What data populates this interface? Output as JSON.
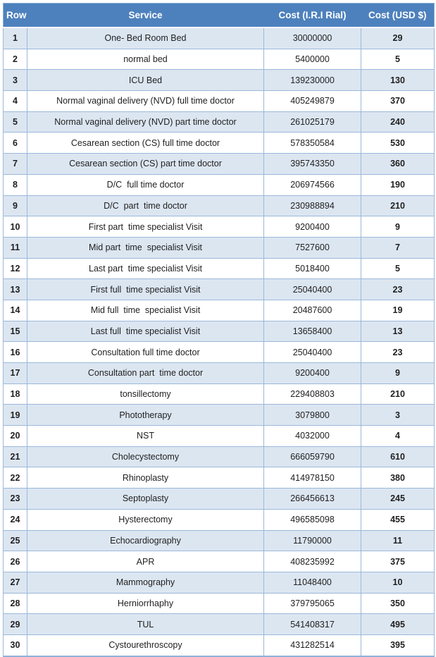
{
  "colors": {
    "header_bg": "#4d81bd",
    "header_text": "#ffffff",
    "band_row_bg": "#dce6f1",
    "plain_row_bg": "#ffffff",
    "grid_border": "#9bb8da",
    "body_text": "#1f1f1f"
  },
  "table": {
    "columns": [
      {
        "label": "Row"
      },
      {
        "label": "Service"
      },
      {
        "label": "Cost (I.R.I Rial)"
      },
      {
        "label": "Cost (USD $)"
      }
    ],
    "rows": [
      {
        "row": "1",
        "service": "One- Bed Room Bed",
        "rial": "30000000",
        "usd": "29"
      },
      {
        "row": "2",
        "service": "normal bed",
        "rial": "5400000",
        "usd": "5"
      },
      {
        "row": "3",
        "service": "ICU Bed",
        "rial": "139230000",
        "usd": "130"
      },
      {
        "row": "4",
        "service": "Normal vaginal delivery (NVD) full time doctor",
        "rial": "405249879",
        "usd": "370"
      },
      {
        "row": "5",
        "service": "Normal vaginal delivery (NVD) part time doctor",
        "rial": "261025179",
        "usd": "240"
      },
      {
        "row": "6",
        "service": "Cesarean section (CS) full time doctor",
        "rial": "578350584",
        "usd": "530"
      },
      {
        "row": "7",
        "service": "Cesarean section (CS) part time doctor",
        "rial": "395743350",
        "usd": "360"
      },
      {
        "row": "8",
        "service": "D/C  full time doctor",
        "rial": "206974566",
        "usd": "190"
      },
      {
        "row": "9",
        "service": "D/C  part  time doctor",
        "rial": "230988894",
        "usd": "210"
      },
      {
        "row": "10",
        "service": "First part  time specialist Visit",
        "rial": "9200400",
        "usd": "9"
      },
      {
        "row": "11",
        "service": "Mid part  time  specialist Visit",
        "rial": "7527600",
        "usd": "7"
      },
      {
        "row": "12",
        "service": "Last part  time specialist Visit",
        "rial": "5018400",
        "usd": "5"
      },
      {
        "row": "13",
        "service": "First full  time specialist Visit",
        "rial": "25040400",
        "usd": "23"
      },
      {
        "row": "14",
        "service": "Mid full  time  specialist Visit",
        "rial": "20487600",
        "usd": "19"
      },
      {
        "row": "15",
        "service": "Last full  time specialist Visit",
        "rial": "13658400",
        "usd": "13"
      },
      {
        "row": "16",
        "service": "Consultation full time doctor",
        "rial": "25040400",
        "usd": "23"
      },
      {
        "row": "17",
        "service": "Consultation part  time doctor",
        "rial": "9200400",
        "usd": "9"
      },
      {
        "row": "18",
        "service": "tonsillectomy",
        "rial": "229408803",
        "usd": "210"
      },
      {
        "row": "19",
        "service": "Phototherapy",
        "rial": "3079800",
        "usd": "3"
      },
      {
        "row": "20",
        "service": "NST",
        "rial": "4032000",
        "usd": "4"
      },
      {
        "row": "21",
        "service": "Cholecystectomy",
        "rial": "666059790",
        "usd": "610"
      },
      {
        "row": "22",
        "service": "Rhinoplasty",
        "rial": "414978150",
        "usd": "380"
      },
      {
        "row": "23",
        "service": "Septoplasty",
        "rial": "266456613",
        "usd": "245"
      },
      {
        "row": "24",
        "service": "Hysterectomy",
        "rial": "496585098",
        "usd": "455"
      },
      {
        "row": "25",
        "service": "Echocardiography",
        "rial": "11790000",
        "usd": "11"
      },
      {
        "row": "26",
        "service": "APR",
        "rial": "408235992",
        "usd": "375"
      },
      {
        "row": "27",
        "service": "Mammography",
        "rial": "11048400",
        "usd": "10"
      },
      {
        "row": "28",
        "service": "Herniorrhaphy",
        "rial": "379795065",
        "usd": "350"
      },
      {
        "row": "29",
        "service": "TUL",
        "rial": "541408317",
        "usd": "495"
      },
      {
        "row": "30",
        "service": "Cystourethroscopy",
        "rial": "431282514",
        "usd": "395"
      }
    ]
  }
}
